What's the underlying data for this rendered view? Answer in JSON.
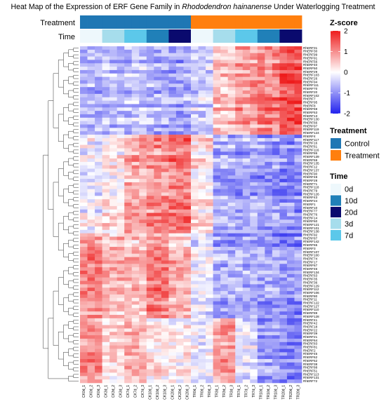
{
  "title_parts": [
    "Heat Map of the Expression of ERF Gene Family in ",
    "Rhododendron hainanense",
    " Under Waterlogging Treatment"
  ],
  "annotation_labels": {
    "treatment": "Treatment",
    "time": "Time"
  },
  "legend": {
    "zscore": {
      "title": "Z-score",
      "ticks": [
        2,
        1,
        0,
        -1,
        -2
      ]
    },
    "treatment": {
      "title": "Treatment",
      "items": [
        {
          "label": "Control",
          "color": "#1f77b4"
        },
        {
          "label": "Treatment",
          "color": "#ff7f0e"
        }
      ]
    },
    "time": {
      "title": "Time",
      "items": [
        {
          "label": "0d",
          "color": "#eef8fc"
        },
        {
          "label": "10d",
          "color": "#2080b8"
        },
        {
          "label": "20d",
          "color": "#0a0a6e"
        },
        {
          "label": "3d",
          "color": "#a6ddec"
        },
        {
          "label": "7d",
          "color": "#5cc8ea"
        }
      ]
    }
  },
  "colors": {
    "low": "#2222ee",
    "mid": "#ffffff",
    "high": "#ee1c1c"
  },
  "chart_data": {
    "type": "heatmap",
    "columns": [
      "CK0d_1",
      "CK0d_2",
      "CK0d_3",
      "CK3d_1",
      "CK3d_2",
      "CK3d_3",
      "CK7d_1",
      "CK7d_2",
      "CK7d_3",
      "CK10d_1",
      "CK10d_2",
      "CK10d_3",
      "CK20d_1",
      "CK20d_2",
      "CK20d_3",
      "TR0d_1",
      "TR0d_2",
      "TR0d_3",
      "TR3d_1",
      "TR3d_2",
      "TR3d_3",
      "TR7d_1",
      "TR7d_2",
      "TR7d_3",
      "TR10d_1",
      "TR10d_2",
      "TR10d_3",
      "TR20d_1",
      "TR20d_2",
      "TR20d_3"
    ],
    "column_treatment": [
      "Control",
      "Control",
      "Control",
      "Control",
      "Control",
      "Control",
      "Control",
      "Control",
      "Control",
      "Control",
      "Control",
      "Control",
      "Control",
      "Control",
      "Control",
      "Treatment",
      "Treatment",
      "Treatment",
      "Treatment",
      "Treatment",
      "Treatment",
      "Treatment",
      "Treatment",
      "Treatment",
      "Treatment",
      "Treatment",
      "Treatment",
      "Treatment",
      "Treatment",
      "Treatment"
    ],
    "column_time": [
      "0d",
      "0d",
      "0d",
      "3d",
      "3d",
      "3d",
      "7d",
      "7d",
      "7d",
      "10d",
      "10d",
      "10d",
      "20d",
      "20d",
      "20d",
      "0d",
      "0d",
      "0d",
      "3d",
      "3d",
      "3d",
      "7d",
      "7d",
      "7d",
      "10d",
      "10d",
      "10d",
      "20d",
      "20d",
      "20d"
    ],
    "rows": [
      "RhERF31",
      "RhERF30",
      "RhERF99",
      "RhERF91",
      "RhERF56",
      "RhERF40",
      "RhERF50",
      "RhERF29",
      "RhERF103",
      "RhERF26",
      "RhERF94",
      "RhERF111",
      "RhERF70",
      "RhERF20",
      "RhERF102",
      "RhERF7",
      "RhERF95",
      "RhERF8",
      "RhERF69",
      "RhERF53",
      "RhERF13",
      "RhERF130",
      "RhERF66",
      "RhERF97",
      "RhERF119",
      "RhERF124",
      "RhERF4",
      "RhERF117",
      "RhERF16",
      "RhERF61",
      "RhERF116",
      "RhERF86",
      "RhERF139",
      "RhERF59",
      "RhERF135",
      "RhERF12",
      "RhERF137",
      "RhERF90",
      "RhERF48",
      "RhERF28",
      "RhERF71",
      "RhERF118",
      "RhERF79",
      "RhERF126",
      "RhERF43",
      "RhERF24",
      "RhERF1",
      "RhERF10",
      "RhERF77",
      "RhERF76",
      "RhERF14",
      "RhERF60",
      "RhERF121",
      "RhERF101",
      "RhERF138",
      "RhERF92",
      "RhERF87",
      "RhERF142",
      "RhERF65",
      "RhERF3",
      "RhERF107",
      "RhERF100",
      "RhERF74",
      "RhERF17",
      "RhERF67",
      "RhERF46",
      "RhERF134",
      "RhERF63",
      "RhERF35",
      "RhERF36",
      "RhERF129",
      "RhERF112",
      "RhERF106",
      "RhERF80",
      "RhERF11",
      "RhERF122",
      "RhERF127",
      "RhERF110",
      "RhERF89",
      "RhERF128",
      "RhERF41",
      "RhERF42",
      "RhERF18",
      "RhERF22",
      "RhERF39",
      "RhERF21",
      "RhERF64",
      "RhERF83",
      "RhERF81",
      "RhERF2",
      "RhERF45",
      "RhERF62",
      "RhERF52",
      "RhERF38",
      "RhERF88",
      "RhERF51",
      "RhERF113",
      "RhERF131",
      "RhERF72"
    ],
    "row_groups": [
      {
        "rows": 26,
        "pattern": [
          -0.6,
          -0.6,
          -0.6,
          -0.55,
          -0.55,
          -0.55,
          -0.5,
          -0.5,
          -0.5,
          -0.65,
          -0.65,
          -0.65,
          -0.8,
          -0.8,
          -0.8,
          -0.4,
          -0.4,
          -0.4,
          0.6,
          0.6,
          0.6,
          0.9,
          0.9,
          0.9,
          1.1,
          1.1,
          1.1,
          1.6,
          1.6,
          1.6
        ]
      },
      {
        "rows": 29,
        "pattern": [
          -0.1,
          -0.1,
          -0.1,
          0.2,
          0.2,
          0.2,
          0.8,
          0.8,
          0.8,
          1.0,
          1.0,
          1.0,
          1.2,
          1.2,
          1.2,
          0.3,
          0.3,
          0.3,
          -0.7,
          -0.7,
          -0.7,
          -0.8,
          -0.8,
          -0.8,
          -0.9,
          -0.9,
          -0.9,
          -1.0,
          -1.0,
          -1.0
        ]
      },
      {
        "rows": 25,
        "pattern": [
          1.0,
          1.0,
          1.0,
          0.6,
          0.6,
          0.6,
          0.5,
          0.5,
          0.5,
          1.1,
          1.1,
          1.1,
          0.6,
          0.6,
          0.6,
          -0.2,
          -0.2,
          -0.2,
          -0.8,
          -0.8,
          -0.8,
          -0.8,
          -0.8,
          -0.8,
          -0.9,
          -0.9,
          -0.9,
          -1.0,
          -1.0,
          -1.0
        ]
      },
      {
        "rows": 19,
        "pattern": [
          0.9,
          0.9,
          0.9,
          0.3,
          0.3,
          0.3,
          0.6,
          0.6,
          0.6,
          0.2,
          0.2,
          0.2,
          0.1,
          0.1,
          0.1,
          -0.1,
          -0.1,
          -0.1,
          0.8,
          0.8,
          0.8,
          -0.3,
          -0.3,
          -0.3,
          -0.9,
          -0.9,
          -0.9,
          -1.1,
          -1.1,
          -1.1
        ]
      }
    ],
    "scale": {
      "min": -2,
      "max": 2,
      "label": "Z-score"
    }
  }
}
